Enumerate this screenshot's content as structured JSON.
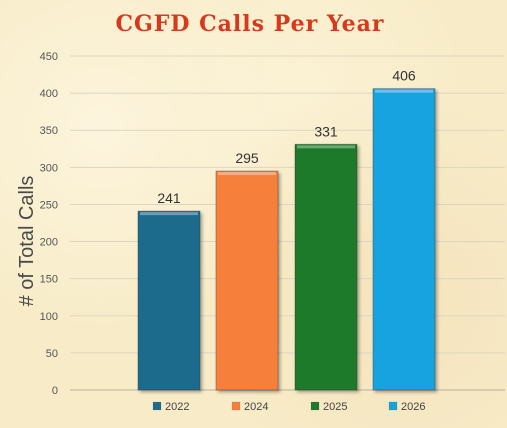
{
  "chart_data": {
    "type": "bar",
    "title": "CGFD Calls Per Year",
    "xlabel": "",
    "ylabel": "# of Total Calls",
    "categories": [
      "2022",
      "2024",
      "2025",
      "2026"
    ],
    "values": [
      241,
      295,
      331,
      406
    ],
    "colors": [
      "#1e6a8c",
      "#f6803a",
      "#1e7a2c",
      "#12a3e0"
    ],
    "yticks": [
      0,
      50,
      100,
      150,
      200,
      250,
      300,
      350,
      400,
      450
    ],
    "ylim": [
      0,
      450
    ],
    "grid": true,
    "legend": "bottom",
    "data_labels": true
  }
}
